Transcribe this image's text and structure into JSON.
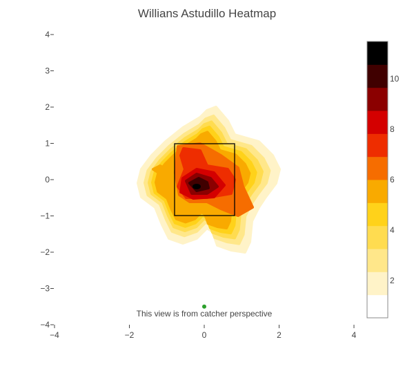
{
  "chart_data": {
    "type": "heatmap",
    "subtype": "contour density",
    "title": "Willians Astudillo Heatmap",
    "xlabel": "",
    "ylabel": "",
    "xlim": [
      -4,
      4
    ],
    "ylim": [
      -4,
      4
    ],
    "xticks": [
      -4,
      -2,
      0,
      2,
      4
    ],
    "yticks": [
      4,
      3,
      2,
      1,
      0,
      -1,
      -2,
      -3,
      -4
    ],
    "xtick_labels": [
      "−4",
      "−2",
      "0",
      "2",
      "4"
    ],
    "ytick_labels": [
      "4",
      "3",
      "2",
      "1",
      "0",
      "−1",
      "−2",
      "−3",
      "−4"
    ],
    "strike_zone": {
      "x": [
        -0.8,
        0.8
      ],
      "y": [
        -0.97,
        1.03
      ]
    },
    "peak": {
      "x": -0.2,
      "y": -0.2,
      "value": 11.5
    },
    "marker": {
      "x": 0,
      "y": -3.5,
      "color": "#2ca02c"
    },
    "annotation": "This view is from catcher perspective",
    "colorbar": {
      "range": [
        0.52,
        11.48
      ],
      "tick_values": [
        2,
        4,
        6,
        8,
        10
      ],
      "tick_labels": [
        "2",
        "4",
        "6",
        "8",
        "10"
      ],
      "colors": [
        "#ffffff",
        "#fff3c8",
        "#ffe78a",
        "#ffdc50",
        "#ffd21a",
        "#f9aa00",
        "#f66d00",
        "#ee2d00",
        "#d40000",
        "#8b0000",
        "#400000",
        "#000000"
      ]
    }
  }
}
